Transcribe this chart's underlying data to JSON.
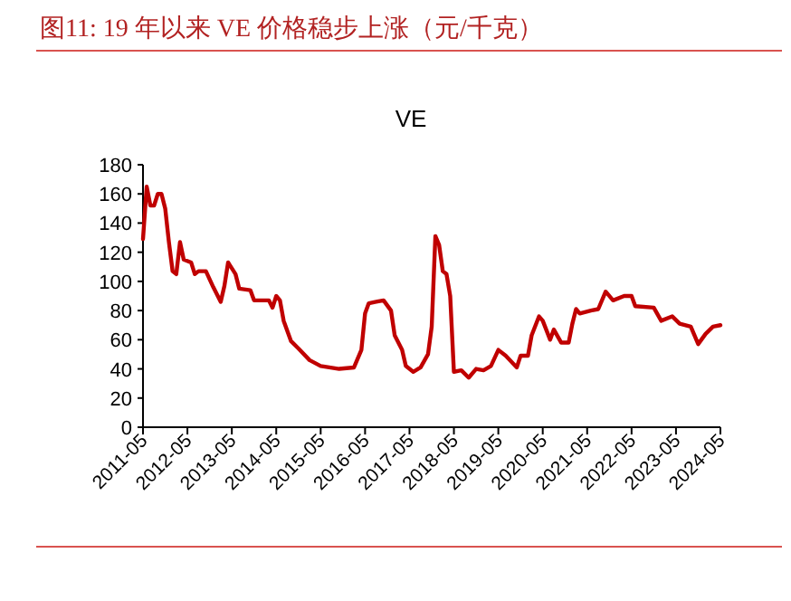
{
  "chart_data": {
    "type": "line",
    "title": "图11:  19 年以来 VE 价格稳步上涨（元/千克）",
    "subtitle": "VE",
    "x": [
      "2011-05",
      "2011-06",
      "2011-07",
      "2011-08",
      "2011-09",
      "2011-10",
      "2011-11",
      "2011-12",
      "2012-01",
      "2012-02",
      "2012-03",
      "2012-04",
      "2012-06",
      "2012-07",
      "2012-08",
      "2012-10",
      "2012-12",
      "2013-02",
      "2013-03",
      "2013-04",
      "2013-06",
      "2013-07",
      "2013-10",
      "2013-11",
      "2014-03",
      "2014-04",
      "2014-05",
      "2014-06",
      "2014-07",
      "2014-09",
      "2014-11",
      "2015-02",
      "2015-05",
      "2015-10",
      "2016-02",
      "2016-04",
      "2016-05",
      "2016-06",
      "2016-08",
      "2016-10",
      "2016-12",
      "2017-01",
      "2017-03",
      "2017-04",
      "2017-06",
      "2017-08",
      "2017-10",
      "2017-11",
      "2017-12",
      "2018-01",
      "2018-02",
      "2018-03",
      "2018-04",
      "2018-05",
      "2018-07",
      "2018-09",
      "2018-11",
      "2019-01",
      "2019-03",
      "2019-05",
      "2019-07",
      "2019-10",
      "2019-11",
      "2020-01",
      "2020-02",
      "2020-04",
      "2020-05",
      "2020-07",
      "2020-08",
      "2020-10",
      "2020-12",
      "2021-01",
      "2021-02",
      "2021-03",
      "2021-06",
      "2021-08",
      "2021-10",
      "2021-12",
      "2022-03",
      "2022-05",
      "2022-06",
      "2022-11",
      "2023-01",
      "2023-04",
      "2023-06",
      "2023-09",
      "2023-11",
      "2024-01",
      "2024-03",
      "2024-05"
    ],
    "series": [
      {
        "color": "#c00000",
        "values": [
          129,
          165,
          152,
          152,
          160,
          160,
          150,
          127,
          107,
          105,
          127,
          115,
          113,
          105,
          107,
          107,
          96,
          86,
          97,
          113,
          105,
          95,
          94,
          87,
          87,
          82,
          90,
          87,
          73,
          59,
          54,
          46,
          42,
          40,
          41,
          53,
          78,
          85,
          86,
          87,
          80,
          63,
          53,
          42,
          38,
          41,
          50,
          69,
          131,
          125,
          107,
          105,
          90,
          38,
          39,
          34,
          40,
          39,
          42,
          53,
          49,
          41,
          49,
          49,
          63,
          76,
          73,
          60,
          67,
          58,
          58,
          71,
          81,
          78,
          80,
          81,
          93,
          87,
          90,
          90,
          83,
          82,
          73,
          76,
          71,
          69,
          57,
          64,
          69,
          70
        ]
      }
    ],
    "xlim": [
      "2011-05",
      "2024-05"
    ],
    "ylim": [
      0,
      180
    ],
    "xticks": [
      "2011-05",
      "2012-05",
      "2013-05",
      "2014-05",
      "2015-05",
      "2016-05",
      "2017-05",
      "2018-05",
      "2019-05",
      "2020-05",
      "2021-05",
      "2022-05",
      "2023-05",
      "2024-05"
    ],
    "yticks": [
      0,
      20,
      40,
      60,
      80,
      100,
      120,
      140,
      160,
      180
    ]
  }
}
